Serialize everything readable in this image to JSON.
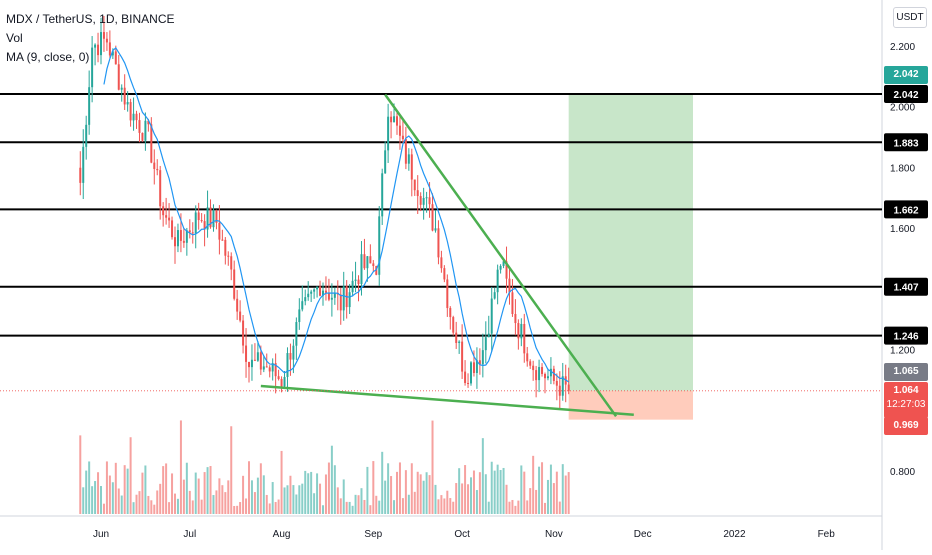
{
  "legend": {
    "symbol": "MDX / TetherUS, 1D, BINANCE",
    "vol": "Vol",
    "ma": "MA (9, close, 0)"
  },
  "price_scale": {
    "unit": "USDT",
    "ticks": [
      "2.200",
      "2.000",
      "1.800",
      "1.600",
      "1.200",
      "0.800"
    ]
  },
  "time_axis": {
    "labels": [
      "Jun",
      "Jul",
      "Aug",
      "Sep",
      "Oct",
      "Nov",
      "Dec",
      "2022",
      "Feb"
    ]
  },
  "price_tags": {
    "current": "1.064",
    "countdown": "12:27:03",
    "stop": "0.969",
    "ma_value": "1.065",
    "target": "2.042"
  },
  "colors": {
    "up": "#26a69a",
    "down": "#ef5350",
    "ma_line": "#2196f3",
    "trendline": "#4caf50",
    "profit_zone": "#c8e6c9",
    "loss_zone": "#ffccbc"
  },
  "chart_data": {
    "type": "candlestick",
    "symbol": "MDX/USDT",
    "timeframe": "1D",
    "exchange": "BINANCE",
    "horizontal_levels": [
      2.042,
      1.883,
      1.662,
      1.407,
      1.246
    ],
    "trendlines": [
      {
        "name": "upper",
        "from": [
          "2021-09-05",
          2.04
        ],
        "to": [
          "2021-11-22",
          0.98
        ]
      },
      {
        "name": "lower",
        "from": [
          "2021-07-25",
          1.08
        ],
        "to": [
          "2021-11-28",
          0.985
        ]
      }
    ],
    "position": {
      "type": "long",
      "entry": 1.064,
      "target": 2.042,
      "stop": 0.969,
      "from": "2021-11-06",
      "to": "2021-12-18"
    },
    "ma_last": 1.065,
    "price_last": 1.064,
    "anchor_closes": [
      [
        "2021-05-25",
        1.75
      ],
      [
        "2021-05-29",
        2.2
      ],
      [
        "2021-06-03",
        2.22
      ],
      [
        "2021-06-10",
        2.0
      ],
      [
        "2021-06-17",
        1.9
      ],
      [
        "2021-06-22",
        1.65
      ],
      [
        "2021-06-27",
        1.55
      ],
      [
        "2021-07-04",
        1.64
      ],
      [
        "2021-07-10",
        1.62
      ],
      [
        "2021-07-15",
        1.45
      ],
      [
        "2021-07-21",
        1.15
      ],
      [
        "2021-07-26",
        1.15
      ],
      [
        "2021-08-01",
        1.1
      ],
      [
        "2021-08-07",
        1.3
      ],
      [
        "2021-08-14",
        1.42
      ],
      [
        "2021-08-21",
        1.35
      ],
      [
        "2021-08-28",
        1.47
      ],
      [
        "2021-09-02",
        1.48
      ],
      [
        "2021-09-06",
        2.01
      ],
      [
        "2021-09-11",
        1.86
      ],
      [
        "2021-09-17",
        1.72
      ],
      [
        "2021-09-22",
        1.6
      ],
      [
        "2021-09-27",
        1.32
      ],
      [
        "2021-10-02",
        1.12
      ],
      [
        "2021-10-08",
        1.2
      ],
      [
        "2021-10-14",
        1.49
      ],
      [
        "2021-10-19",
        1.3
      ],
      [
        "2021-10-25",
        1.15
      ],
      [
        "2021-10-31",
        1.1
      ],
      [
        "2021-11-06",
        1.064
      ]
    ]
  }
}
